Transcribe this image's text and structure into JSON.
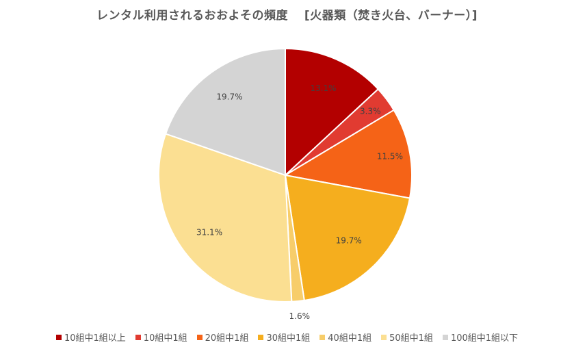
{
  "chart_data": {
    "type": "pie",
    "title": "レンタル利用されるおおよその頻度　 [火器類（焚き火台、バーナー）]",
    "categories": [
      "10組中1組以上",
      "10組中1組",
      "20組中1組",
      "30組中1組",
      "40組中1組",
      "50組中1組",
      "100組中1組以下"
    ],
    "values": [
      13.1,
      3.3,
      11.5,
      19.7,
      1.6,
      31.1,
      19.7
    ],
    "value_labels": [
      "13.1%",
      "3.3%",
      "11.5%",
      "19.7%",
      "1.6%",
      "31.1%",
      "19.7%"
    ],
    "colors": [
      "#b30000",
      "#e13b31",
      "#f56317",
      "#f5ae1e",
      "#f7cd6a",
      "#fbdf92",
      "#d4d4d4"
    ],
    "legend_position": "bottom"
  }
}
